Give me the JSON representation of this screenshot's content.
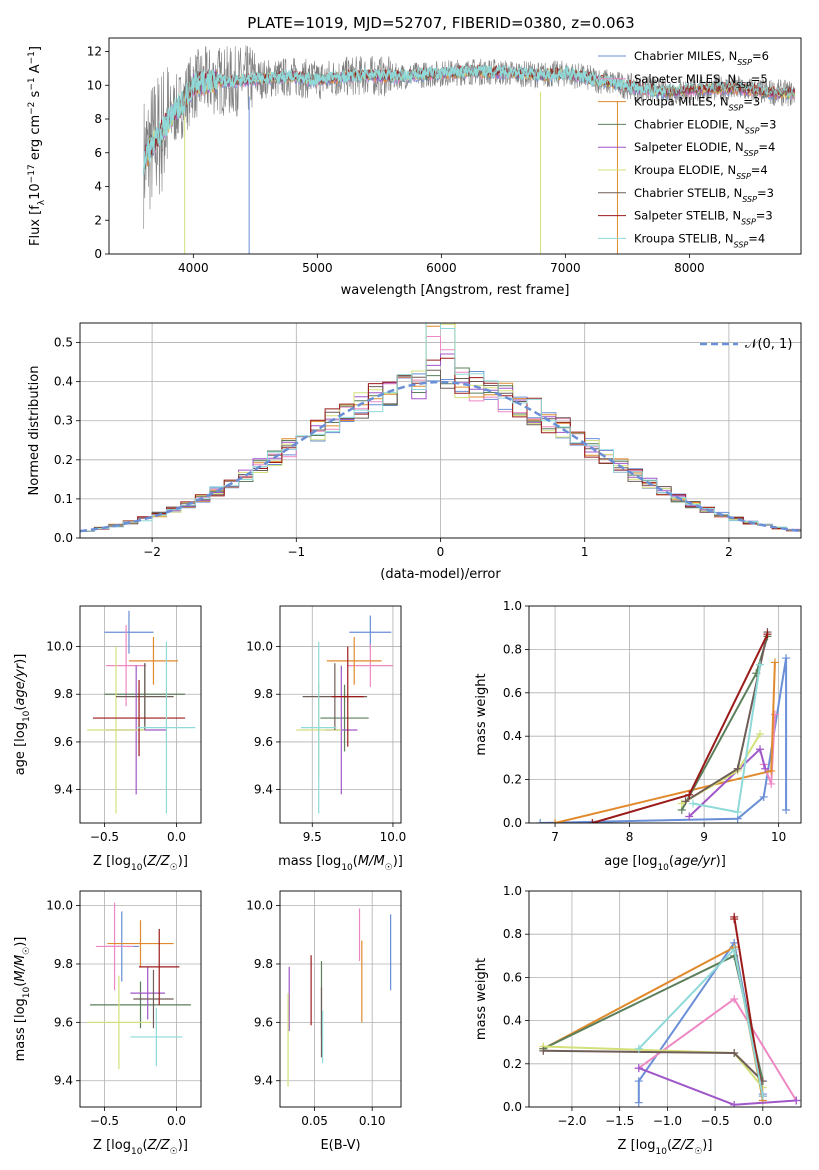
{
  "figure": {
    "title": "PLATE=1019, MJD=52707, FIBERID=0380, z=0.063"
  },
  "colors": {
    "series": [
      "#6a8fd6",
      "#ee88c4",
      "#e08a2c",
      "#5b7f5b",
      "#a057c8",
      "#d4e07a",
      "#6f5d57",
      "#9b1b1b",
      "#8fd9d9"
    ],
    "spectrum_gray": "#7f7f7f",
    "gaussian": "#6a8fd6",
    "grid": "#b0b0b0"
  },
  "chart_data": [
    {
      "id": "spectrum",
      "type": "line",
      "xlabel": "wavelength [Angstrom, rest frame]",
      "ylabel": "Flux [f_λ10^-17 erg cm^-2 s^-1 A^-1]",
      "xlim": [
        3320,
        8900
      ],
      "ylim": [
        0,
        12.8
      ],
      "xticks": [
        4000,
        5000,
        6000,
        7000,
        8000
      ],
      "yticks": [
        0,
        2,
        4,
        6,
        8,
        10,
        12
      ],
      "grid": false,
      "legend_position": "top-right",
      "legend": [
        "Chabrier MILES, N_SSP=6",
        "Salpeter MILES, N_SSP=5",
        "Kroupa MILES, N_SSP=3",
        "Chabrier ELODIE, N_SSP=3",
        "Salpeter ELODIE, N_SSP=4",
        "Kroupa ELODIE, N_SSP=4",
        "Chabrier STELIB, N_SSP=3",
        "Salpeter STELIB, N_SSP=3",
        "Kroupa STELIB, N_SSP=4"
      ],
      "observed_start": 3600,
      "observed_end": 8850,
      "continuum": {
        "wavelength": [
          3600,
          3650,
          3700,
          3750,
          3800,
          3850,
          3900,
          3950,
          4000,
          4100,
          4200,
          4300,
          4400,
          4600,
          4800,
          5000,
          5200,
          5400,
          5600,
          5800,
          6000,
          6200,
          6400,
          6600,
          6800,
          7000,
          7200,
          7400,
          7600,
          7800,
          8000,
          8200,
          8400,
          8600,
          8850
        ],
        "flux": [
          5.5,
          6.2,
          6.8,
          7.3,
          7.9,
          8.5,
          8.8,
          9.4,
          10.0,
          10.2,
          10.3,
          10.2,
          10.3,
          10.4,
          10.5,
          10.3,
          10.5,
          10.6,
          10.5,
          10.6,
          10.7,
          10.8,
          10.8,
          10.7,
          10.6,
          10.7,
          10.4,
          10.1,
          9.8,
          9.6,
          9.7,
          9.8,
          9.8,
          9.6,
          9.5
        ]
      },
      "dips": [
        {
          "wavelength": 3930,
          "flux": 0
        },
        {
          "wavelength": 4450,
          "flux": 0
        },
        {
          "wavelength": 6800,
          "flux": 0
        },
        {
          "wavelength": 7420,
          "flux": 0
        }
      ]
    },
    {
      "id": "residuals",
      "type": "histogram",
      "xlabel": "(data-model)/error",
      "ylabel": "Normed distribution",
      "xlim": [
        -2.5,
        2.5
      ],
      "ylim": [
        0,
        0.55
      ],
      "xticks": [
        -2,
        -1,
        0,
        1,
        2
      ],
      "yticks": [
        0.0,
        0.1,
        0.2,
        0.3,
        0.4,
        0.5
      ],
      "grid": true,
      "bin_width": 0.1,
      "legend_position": "top-right",
      "reference": {
        "name": "𝒩(0, 1)",
        "mean": 0,
        "sigma": 1
      }
    },
    {
      "id": "Z-age",
      "type": "scatter",
      "xlabel": "Z [log₁₀(Z/Z☉)]",
      "ylabel": "age  [log₁₀(age/yr)]",
      "xlim": [
        -0.67,
        0.17
      ],
      "ylim": [
        9.26,
        10.17
      ],
      "xticks": [
        -0.5,
        0.0
      ],
      "yticks": [
        9.4,
        9.6,
        9.8,
        10.0
      ],
      "grid": true,
      "points": [
        {
          "x": -0.33,
          "y": 10.06,
          "xerr": 0.17,
          "yerr": 0.09
        },
        {
          "x": -0.35,
          "y": 9.92,
          "xerr": 0.14,
          "yerr": 0.17
        },
        {
          "x": -0.16,
          "y": 9.94,
          "xerr": 0.17,
          "yerr": 0.1
        },
        {
          "x": -0.22,
          "y": 9.8,
          "xerr": 0.28,
          "yerr": 0.13
        },
        {
          "x": -0.28,
          "y": 9.65,
          "xerr": 0.21,
          "yerr": 0.27
        },
        {
          "x": -0.42,
          "y": 9.65,
          "xerr": 0.2,
          "yerr": 0.35
        },
        {
          "x": -0.22,
          "y": 9.79,
          "xerr": 0.2,
          "yerr": 0.14
        },
        {
          "x": -0.26,
          "y": 9.7,
          "xerr": 0.32,
          "yerr": 0.16
        },
        {
          "x": -0.07,
          "y": 9.66,
          "xerr": 0.2,
          "yerr": 0.36
        }
      ]
    },
    {
      "id": "mass-age",
      "type": "scatter",
      "xlabel": "mass [log₁₀(M/M☉)]",
      "ylabel": "",
      "xlim": [
        9.3,
        10.05
      ],
      "ylim": [
        9.26,
        10.17
      ],
      "xticks": [
        9.5,
        10.0
      ],
      "yticks": [
        9.4,
        9.6,
        9.8,
        10.0
      ],
      "grid": true,
      "points": [
        {
          "x": 9.86,
          "y": 10.06,
          "xerr": 0.13,
          "yerr": 0.07
        },
        {
          "x": 9.86,
          "y": 9.92,
          "xerr": 0.14,
          "yerr": 0.09
        },
        {
          "x": 9.76,
          "y": 9.94,
          "xerr": 0.17,
          "yerr": 0.1
        },
        {
          "x": 9.7,
          "y": 9.7,
          "xerr": 0.15,
          "yerr": 0.14
        },
        {
          "x": 9.68,
          "y": 9.65,
          "xerr": 0.1,
          "yerr": 0.27
        },
        {
          "x": 9.54,
          "y": 9.65,
          "xerr": 0.14,
          "yerr": 0.2
        },
        {
          "x": 9.64,
          "y": 9.79,
          "xerr": 0.2,
          "yerr": 0.14
        },
        {
          "x": 9.72,
          "y": 9.79,
          "xerr": 0.1,
          "yerr": 0.21
        },
        {
          "x": 9.54,
          "y": 9.66,
          "xerr": 0.11,
          "yerr": 0.36
        }
      ]
    },
    {
      "id": "age-weight",
      "type": "line",
      "xlabel": "age  [log₁₀(age/yr)]",
      "ylabel": "mass weight",
      "xlim": [
        6.65,
        10.3
      ],
      "ylim": [
        0,
        1.0
      ],
      "xticks": [
        7,
        8,
        9,
        10
      ],
      "yticks": [
        0.0,
        0.2,
        0.4,
        0.6,
        0.8,
        1.0
      ],
      "grid": true,
      "series": [
        {
          "x": [
            6.8,
            9.45,
            9.8,
            10.1,
            10.1
          ],
          "y": [
            0.0,
            0.02,
            0.12,
            0.76,
            0.06
          ]
        },
        {
          "x": [
            9.8,
            9.9,
            9.95
          ],
          "y": [
            0.27,
            0.18,
            0.5
          ]
        },
        {
          "x": [
            7.0,
            9.9,
            9.95
          ],
          "y": [
            0.0,
            0.24,
            0.74
          ]
        },
        {
          "x": [
            8.7,
            9.7,
            9.85
          ],
          "y": [
            0.06,
            0.69,
            0.86
          ]
        },
        {
          "x": [
            8.8,
            9.75,
            9.82
          ],
          "y": [
            0.03,
            0.34,
            0.25
          ]
        },
        {
          "x": [
            8.7,
            9.45,
            9.75
          ],
          "y": [
            0.09,
            0.24,
            0.41
          ]
        },
        {
          "x": [
            8.75,
            9.45,
            9.85
          ],
          "y": [
            0.1,
            0.25,
            0.88
          ]
        },
        {
          "x": [
            7.5,
            8.8,
            9.85
          ],
          "y": [
            0.0,
            0.13,
            0.87
          ]
        },
        {
          "x": [
            8.85,
            9.45,
            9.75
          ],
          "y": [
            0.09,
            0.05,
            0.73
          ]
        }
      ]
    },
    {
      "id": "Z-mass",
      "type": "scatter",
      "xlabel": "Z [log₁₀(Z/Z☉)]",
      "ylabel": "mass [log₁₀(M/M☉)]",
      "xlim": [
        -0.67,
        0.17
      ],
      "ylim": [
        9.31,
        10.05
      ],
      "xticks": [
        -0.5,
        0.0
      ],
      "yticks": [
        9.4,
        9.6,
        9.8,
        10.0
      ],
      "grid": true,
      "points": [
        {
          "x": -0.38,
          "y": 9.86,
          "xerr": 0.12,
          "yerr": 0.12
        },
        {
          "x": -0.43,
          "y": 9.86,
          "xerr": 0.13,
          "yerr": 0.15
        },
        {
          "x": -0.25,
          "y": 9.87,
          "xerr": 0.23,
          "yerr": 0.08
        },
        {
          "x": -0.25,
          "y": 9.66,
          "xerr": 0.35,
          "yerr": 0.08
        },
        {
          "x": -0.2,
          "y": 9.7,
          "xerr": 0.12,
          "yerr": 0.09
        },
        {
          "x": -0.4,
          "y": 9.6,
          "xerr": 0.22,
          "yerr": 0.16
        },
        {
          "x": -0.16,
          "y": 9.68,
          "xerr": 0.14,
          "yerr": 0.1
        },
        {
          "x": -0.12,
          "y": 9.79,
          "xerr": 0.14,
          "yerr": 0.13
        },
        {
          "x": -0.14,
          "y": 9.55,
          "xerr": 0.18,
          "yerr": 0.1
        }
      ]
    },
    {
      "id": "ebv-mass",
      "type": "scatter",
      "xlabel": "E(B-V)",
      "ylabel": "",
      "xlim": [
        0.02,
        0.125
      ],
      "ylim": [
        9.31,
        10.05
      ],
      "xticks": [
        0.05,
        0.1
      ],
      "yticks": [
        9.4,
        9.6,
        9.8,
        10.0
      ],
      "grid": true,
      "points": [
        {
          "x": 0.116,
          "y": 9.84,
          "yerr": 0.13
        },
        {
          "x": 0.089,
          "y": 9.9,
          "yerr": 0.09
        },
        {
          "x": 0.091,
          "y": 9.74,
          "yerr": 0.14
        },
        {
          "x": 0.056,
          "y": 9.68,
          "yerr": 0.13
        },
        {
          "x": 0.028,
          "y": 9.68,
          "yerr": 0.11
        },
        {
          "x": 0.027,
          "y": 9.54,
          "yerr": 0.16
        },
        {
          "x": 0.056,
          "y": 9.6,
          "yerr": 0.12
        },
        {
          "x": 0.047,
          "y": 9.71,
          "yerr": 0.12
        },
        {
          "x": 0.057,
          "y": 9.55,
          "yerr": 0.09
        }
      ]
    },
    {
      "id": "Z-weight",
      "type": "line",
      "xlabel": "Z [log₁₀(Z/Z☉)]",
      "ylabel": "mass weight",
      "xlim": [
        -2.45,
        0.4
      ],
      "ylim": [
        0,
        1.0
      ],
      "xticks": [
        -2.0,
        -1.5,
        -1.0,
        -0.5,
        0.0
      ],
      "yticks": [
        0.0,
        0.2,
        0.4,
        0.6,
        0.8,
        1.0
      ],
      "grid": true,
      "series": [
        {
          "x": [
            -1.3,
            -1.3,
            -0.3,
            0.0
          ],
          "y": [
            0.02,
            0.12,
            0.76,
            0.06
          ]
        },
        {
          "x": [
            -1.3,
            -0.3,
            0.35
          ],
          "y": [
            0.18,
            0.5,
            0.03
          ]
        },
        {
          "x": [
            -2.3,
            -0.3,
            0.0
          ],
          "y": [
            0.27,
            0.74,
            0.03
          ]
        },
        {
          "x": [
            -2.3,
            -0.3,
            0.0
          ],
          "y": [
            0.27,
            0.7,
            0.12
          ]
        },
        {
          "x": [
            -1.3,
            -0.3,
            0.35
          ],
          "y": [
            0.18,
            0.01,
            0.03
          ]
        },
        {
          "x": [
            -2.3,
            -0.3,
            0.0
          ],
          "y": [
            0.28,
            0.25,
            0.09
          ]
        },
        {
          "x": [
            -2.3,
            -0.3,
            0.0
          ],
          "y": [
            0.26,
            0.25,
            0.12
          ]
        },
        {
          "x": [
            -0.3,
            -0.3,
            0.0
          ],
          "y": [
            0.87,
            0.88,
            0.05
          ]
        },
        {
          "x": [
            -1.3,
            -0.3,
            0.0
          ],
          "y": [
            0.27,
            0.73,
            0.05
          ]
        }
      ]
    }
  ]
}
